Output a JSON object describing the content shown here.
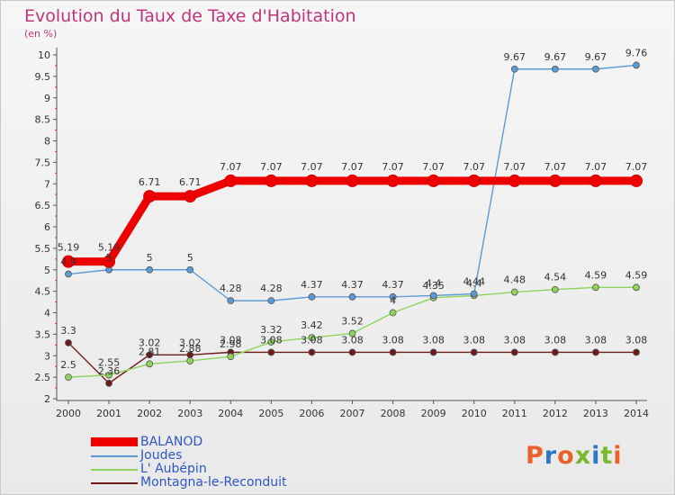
{
  "header": {
    "title": "Evolution du Taux de Taxe d'Habitation",
    "subtitle": "(en %)"
  },
  "logo": {
    "text": "Proxiti",
    "colors": [
      "#e9622b",
      "#2f77c4",
      "#e9622b",
      "#7ab82e",
      "#2f77c4",
      "#7ab82e",
      "#e9622b"
    ]
  },
  "chart_data": {
    "type": "line",
    "title": "Evolution du Taux de Taxe d'Habitation",
    "ylabel": "(en %)",
    "xlabel": "",
    "x": [
      "2000",
      "2001",
      "2002",
      "2003",
      "2004",
      "2005",
      "2006",
      "2007",
      "2008",
      "2009",
      "2010",
      "2011",
      "2012",
      "2013",
      "2014"
    ],
    "ylim": [
      2,
      10
    ],
    "yticks": [
      "2",
      "2.5",
      "3",
      "3.5",
      "4",
      "4.5",
      "5",
      "5.5",
      "6",
      "6.5",
      "7",
      "7.5",
      "8",
      "8.5",
      "9",
      "9.5",
      "10"
    ],
    "grid": false,
    "legend_position": "bottom-left",
    "series": [
      {
        "name": "BALANOD",
        "color": "#ee0000",
        "values": [
          5.19,
          5.19,
          6.71,
          6.71,
          7.07,
          7.07,
          7.07,
          7.07,
          7.07,
          7.07,
          7.07,
          7.07,
          7.07,
          7.07,
          7.07
        ],
        "labels": [
          "5.19",
          "5.19",
          "6.71",
          "6.71",
          "7.07",
          "7.07",
          "7.07",
          "7.07",
          "7.07",
          "7.07",
          "7.07",
          "7.07",
          "7.07",
          "7.07",
          "7.07"
        ]
      },
      {
        "name": "Joudes",
        "color": "#5b9bd5",
        "values": [
          4.9,
          5,
          5,
          5,
          4.28,
          4.28,
          4.37,
          4.37,
          4.37,
          4.4,
          4.44,
          9.67,
          9.67,
          9.67,
          9.76
        ],
        "labels": [
          "4.9",
          "5",
          "5",
          "5",
          "4.28",
          "4.28",
          "4.37",
          "4.37",
          "4.37",
          "4.4",
          "4.44",
          "9.67",
          "9.67",
          "9.67",
          "9.76"
        ]
      },
      {
        "name": "L' Aubépin",
        "color": "#8ed45c",
        "values": [
          2.5,
          2.55,
          2.81,
          2.88,
          2.98,
          3.32,
          3.42,
          3.52,
          4,
          4.35,
          4.4,
          4.48,
          4.54,
          4.59,
          4.59
        ],
        "labels": [
          "2.5",
          "2.55",
          "2.81",
          "2.88",
          "2.98",
          "3.32",
          "3.42",
          "3.52",
          "4",
          "4.35",
          "4.4",
          "4.48",
          "4.54",
          "4.59",
          "4.59"
        ]
      },
      {
        "name": "Montagna-le-Reconduit",
        "color": "#6e1a1a",
        "values": [
          3.3,
          2.36,
          3.02,
          3.02,
          3.08,
          3.08,
          3.08,
          3.08,
          3.08,
          3.08,
          3.08,
          3.08,
          3.08,
          3.08,
          3.08
        ],
        "labels": [
          "3.3",
          "2.36",
          "3.02",
          "3.02",
          "3.08",
          "3.08",
          "3.08",
          "3.08",
          "3.08",
          "3.08",
          "3.08",
          "3.08",
          "3.08",
          "3.08",
          "3.08"
        ]
      }
    ]
  }
}
